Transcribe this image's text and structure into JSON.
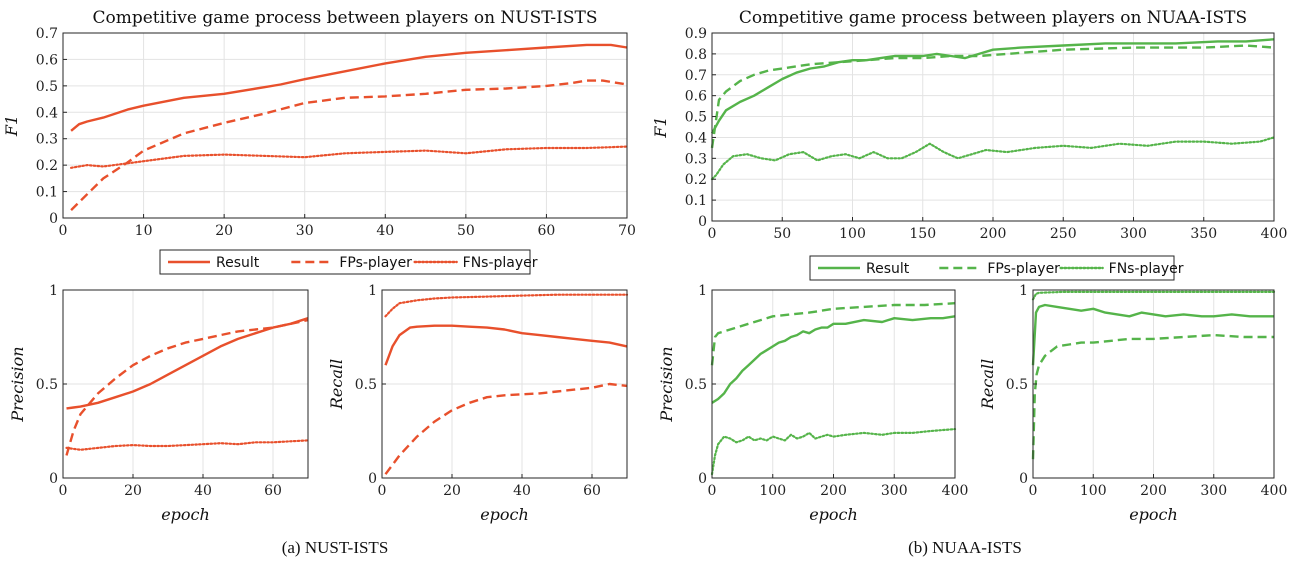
{
  "colors": {
    "nust": "#e8502c",
    "nuaa": "#55b44a"
  },
  "captions": [
    "(a) NUST-ISTS",
    "(b) NUAA-ISTS"
  ],
  "legend_labels": [
    "Result",
    "FPs-player",
    "FNs-player"
  ],
  "chart_data": [
    {
      "id": "nust-f1",
      "type": "line",
      "title": "Competitive game process between players on NUST-ISTS",
      "xlabel": "",
      "ylabel": "F1",
      "xlim": [
        0,
        70
      ],
      "ylim": [
        0,
        0.7
      ],
      "xticks": [
        0,
        10,
        20,
        30,
        40,
        50,
        60,
        70
      ],
      "yticks": [
        0,
        0.1,
        0.2,
        0.3,
        0.4,
        0.5,
        0.6,
        0.7
      ],
      "grid": true,
      "legend": "below",
      "series": [
        {
          "name": "Result",
          "style": "solid",
          "x": [
            1,
            2,
            3,
            5,
            8,
            10,
            15,
            20,
            25,
            27,
            30,
            35,
            40,
            45,
            50,
            55,
            60,
            65,
            68,
            70
          ],
          "y": [
            0.33,
            0.355,
            0.365,
            0.38,
            0.41,
            0.425,
            0.455,
            0.47,
            0.495,
            0.505,
            0.525,
            0.555,
            0.585,
            0.61,
            0.625,
            0.635,
            0.645,
            0.655,
            0.655,
            0.645
          ]
        },
        {
          "name": "FPs-player",
          "style": "dashed",
          "x": [
            1,
            3,
            5,
            8,
            10,
            15,
            20,
            25,
            30,
            35,
            40,
            45,
            50,
            55,
            60,
            63,
            65,
            67,
            70
          ],
          "y": [
            0.03,
            0.09,
            0.15,
            0.21,
            0.255,
            0.32,
            0.36,
            0.395,
            0.435,
            0.455,
            0.46,
            0.47,
            0.485,
            0.49,
            0.5,
            0.51,
            0.52,
            0.52,
            0.505
          ]
        },
        {
          "name": "FNs-player",
          "style": "dotted",
          "x": [
            1,
            3,
            5,
            10,
            15,
            20,
            25,
            30,
            35,
            40,
            45,
            50,
            55,
            60,
            65,
            70
          ],
          "y": [
            0.19,
            0.2,
            0.195,
            0.215,
            0.235,
            0.24,
            0.235,
            0.23,
            0.245,
            0.25,
            0.255,
            0.245,
            0.26,
            0.265,
            0.265,
            0.27
          ]
        }
      ]
    },
    {
      "id": "nust-precision",
      "type": "line",
      "title": "",
      "xlabel": "epoch",
      "ylabel": "Precision",
      "xlim": [
        0,
        70
      ],
      "ylim": [
        0,
        1
      ],
      "xticks": [
        0,
        20,
        40,
        60
      ],
      "yticks": [
        0,
        0.5,
        1
      ],
      "grid": true,
      "series": [
        {
          "name": "Result",
          "style": "solid",
          "x": [
            1,
            3,
            5,
            10,
            15,
            20,
            25,
            30,
            35,
            40,
            45,
            50,
            55,
            60,
            65,
            70
          ],
          "y": [
            0.37,
            0.375,
            0.38,
            0.4,
            0.43,
            0.46,
            0.5,
            0.55,
            0.6,
            0.65,
            0.7,
            0.74,
            0.77,
            0.8,
            0.82,
            0.85
          ]
        },
        {
          "name": "FPs-player",
          "style": "dashed",
          "x": [
            1,
            3,
            5,
            10,
            15,
            20,
            25,
            30,
            35,
            40,
            45,
            50,
            55,
            60,
            65,
            70
          ],
          "y": [
            0.12,
            0.25,
            0.34,
            0.45,
            0.53,
            0.6,
            0.65,
            0.69,
            0.72,
            0.74,
            0.76,
            0.78,
            0.79,
            0.8,
            0.82,
            0.84
          ]
        },
        {
          "name": "FNs-player",
          "style": "dotted",
          "x": [
            1,
            5,
            10,
            15,
            20,
            25,
            30,
            35,
            40,
            45,
            50,
            55,
            60,
            65,
            70
          ],
          "y": [
            0.16,
            0.15,
            0.16,
            0.17,
            0.175,
            0.17,
            0.17,
            0.175,
            0.18,
            0.185,
            0.18,
            0.19,
            0.19,
            0.195,
            0.2
          ]
        }
      ]
    },
    {
      "id": "nust-recall",
      "type": "line",
      "title": "",
      "xlabel": "epoch",
      "ylabel": "Recall",
      "xlim": [
        0,
        70
      ],
      "ylim": [
        0,
        1
      ],
      "xticks": [
        0,
        20,
        40,
        60
      ],
      "yticks": [
        0,
        0.5,
        1
      ],
      "grid": true,
      "series": [
        {
          "name": "Result",
          "style": "solid",
          "x": [
            1,
            3,
            5,
            8,
            10,
            15,
            20,
            25,
            30,
            35,
            40,
            45,
            50,
            55,
            60,
            65,
            70
          ],
          "y": [
            0.6,
            0.7,
            0.76,
            0.8,
            0.805,
            0.81,
            0.81,
            0.805,
            0.8,
            0.79,
            0.77,
            0.76,
            0.75,
            0.74,
            0.73,
            0.72,
            0.7
          ]
        },
        {
          "name": "FPs-player",
          "style": "dashed",
          "x": [
            1,
            3,
            5,
            10,
            15,
            20,
            25,
            30,
            35,
            40,
            45,
            50,
            55,
            60,
            65,
            70
          ],
          "y": [
            0.02,
            0.07,
            0.12,
            0.22,
            0.3,
            0.36,
            0.4,
            0.43,
            0.44,
            0.445,
            0.45,
            0.46,
            0.47,
            0.48,
            0.5,
            0.49
          ]
        },
        {
          "name": "FNs-player",
          "style": "dotted",
          "x": [
            1,
            3,
            5,
            10,
            15,
            20,
            30,
            40,
            50,
            60,
            70
          ],
          "y": [
            0.86,
            0.9,
            0.93,
            0.945,
            0.955,
            0.96,
            0.965,
            0.97,
            0.975,
            0.975,
            0.975
          ]
        }
      ]
    },
    {
      "id": "nuaa-f1",
      "type": "line",
      "title": "Competitive game process between players on NUAA-ISTS",
      "xlabel": "",
      "ylabel": "F1",
      "xlim": [
        0,
        400
      ],
      "ylim": [
        0,
        0.9
      ],
      "xticks": [
        0,
        50,
        100,
        150,
        200,
        250,
        300,
        350,
        400
      ],
      "yticks": [
        0,
        0.1,
        0.2,
        0.3,
        0.4,
        0.5,
        0.6,
        0.7,
        0.8,
        0.9
      ],
      "grid": true,
      "legend": "below",
      "series": [
        {
          "name": "Result",
          "style": "solid",
          "x": [
            0,
            5,
            10,
            20,
            30,
            40,
            50,
            60,
            70,
            80,
            90,
            100,
            110,
            120,
            130,
            140,
            150,
            160,
            170,
            180,
            190,
            200,
            220,
            250,
            280,
            300,
            330,
            360,
            380,
            400
          ],
          "y": [
            0.42,
            0.48,
            0.53,
            0.57,
            0.6,
            0.64,
            0.68,
            0.71,
            0.73,
            0.74,
            0.76,
            0.77,
            0.77,
            0.78,
            0.79,
            0.79,
            0.79,
            0.8,
            0.79,
            0.78,
            0.8,
            0.82,
            0.83,
            0.84,
            0.85,
            0.85,
            0.85,
            0.86,
            0.86,
            0.87
          ]
        },
        {
          "name": "FPs-player",
          "style": "dashed",
          "x": [
            0,
            5,
            10,
            20,
            30,
            40,
            50,
            70,
            90,
            110,
            130,
            150,
            170,
            190,
            210,
            250,
            300,
            350,
            380,
            400
          ],
          "y": [
            0.35,
            0.58,
            0.62,
            0.67,
            0.7,
            0.72,
            0.73,
            0.75,
            0.76,
            0.77,
            0.78,
            0.78,
            0.79,
            0.79,
            0.8,
            0.82,
            0.83,
            0.83,
            0.84,
            0.83
          ]
        },
        {
          "name": "FNs-player",
          "style": "dotted",
          "x": [
            0,
            3,
            8,
            15,
            25,
            35,
            45,
            55,
            65,
            75,
            85,
            95,
            105,
            115,
            125,
            135,
            145,
            155,
            165,
            175,
            185,
            195,
            210,
            230,
            250,
            270,
            290,
            310,
            330,
            350,
            370,
            390,
            400
          ],
          "y": [
            0.2,
            0.22,
            0.27,
            0.31,
            0.32,
            0.3,
            0.29,
            0.32,
            0.33,
            0.29,
            0.31,
            0.32,
            0.3,
            0.33,
            0.3,
            0.3,
            0.33,
            0.37,
            0.33,
            0.3,
            0.32,
            0.34,
            0.33,
            0.35,
            0.36,
            0.35,
            0.37,
            0.36,
            0.38,
            0.38,
            0.37,
            0.38,
            0.4
          ]
        }
      ]
    },
    {
      "id": "nuaa-precision",
      "type": "line",
      "title": "",
      "xlabel": "epoch",
      "ylabel": "Precision",
      "xlim": [
        0,
        400
      ],
      "ylim": [
        0,
        1
      ],
      "xticks": [
        0,
        100,
        200,
        300,
        400
      ],
      "yticks": [
        0,
        0.5,
        1
      ],
      "grid": true,
      "series": [
        {
          "name": "Result",
          "style": "solid",
          "x": [
            0,
            10,
            20,
            30,
            40,
            50,
            60,
            70,
            80,
            90,
            100,
            110,
            120,
            130,
            140,
            150,
            160,
            170,
            180,
            190,
            200,
            220,
            250,
            280,
            300,
            330,
            360,
            380,
            400
          ],
          "y": [
            0.4,
            0.42,
            0.45,
            0.5,
            0.53,
            0.57,
            0.6,
            0.63,
            0.66,
            0.68,
            0.7,
            0.72,
            0.73,
            0.75,
            0.76,
            0.78,
            0.77,
            0.79,
            0.8,
            0.8,
            0.82,
            0.82,
            0.84,
            0.83,
            0.85,
            0.84,
            0.85,
            0.85,
            0.86
          ]
        },
        {
          "name": "FPs-player",
          "style": "dashed",
          "x": [
            0,
            5,
            10,
            20,
            40,
            60,
            80,
            100,
            130,
            160,
            200,
            250,
            300,
            350,
            400
          ],
          "y": [
            0.6,
            0.75,
            0.77,
            0.78,
            0.8,
            0.82,
            0.84,
            0.86,
            0.87,
            0.88,
            0.9,
            0.91,
            0.92,
            0.92,
            0.93
          ]
        },
        {
          "name": "FNs-player",
          "style": "dotted",
          "x": [
            0,
            5,
            10,
            20,
            30,
            40,
            50,
            60,
            70,
            80,
            90,
            100,
            110,
            120,
            130,
            140,
            150,
            160,
            170,
            180,
            190,
            200,
            220,
            250,
            280,
            300,
            330,
            360,
            400
          ],
          "y": [
            0.02,
            0.12,
            0.18,
            0.22,
            0.21,
            0.19,
            0.2,
            0.22,
            0.2,
            0.21,
            0.2,
            0.22,
            0.21,
            0.2,
            0.23,
            0.21,
            0.22,
            0.24,
            0.21,
            0.22,
            0.23,
            0.22,
            0.23,
            0.24,
            0.23,
            0.24,
            0.24,
            0.25,
            0.26
          ]
        }
      ]
    },
    {
      "id": "nuaa-recall",
      "type": "line",
      "title": "",
      "xlabel": "epoch",
      "ylabel": "Recall",
      "xlim": [
        0,
        400
      ],
      "ylim": [
        0,
        1
      ],
      "xticks": [
        0,
        100,
        200,
        300,
        400
      ],
      "yticks": [
        0,
        0.5,
        1
      ],
      "grid": true,
      "series": [
        {
          "name": "Result",
          "style": "solid",
          "x": [
            0,
            5,
            10,
            20,
            40,
            60,
            80,
            100,
            120,
            140,
            160,
            180,
            200,
            220,
            250,
            280,
            300,
            330,
            360,
            400
          ],
          "y": [
            0.6,
            0.88,
            0.91,
            0.92,
            0.91,
            0.9,
            0.89,
            0.9,
            0.88,
            0.87,
            0.86,
            0.88,
            0.87,
            0.86,
            0.87,
            0.86,
            0.86,
            0.87,
            0.86,
            0.86
          ]
        },
        {
          "name": "FPs-player",
          "style": "dashed",
          "x": [
            0,
            3,
            6,
            10,
            20,
            40,
            60,
            80,
            100,
            130,
            160,
            200,
            250,
            300,
            350,
            400
          ],
          "y": [
            0.1,
            0.45,
            0.55,
            0.6,
            0.65,
            0.7,
            0.71,
            0.72,
            0.72,
            0.73,
            0.74,
            0.74,
            0.75,
            0.76,
            0.75,
            0.75
          ]
        },
        {
          "name": "FNs-player",
          "style": "dotted",
          "x": [
            0,
            5,
            10,
            50,
            100,
            200,
            300,
            400
          ],
          "y": [
            0.95,
            0.98,
            0.985,
            0.99,
            0.99,
            0.99,
            0.99,
            0.99
          ]
        }
      ]
    }
  ]
}
